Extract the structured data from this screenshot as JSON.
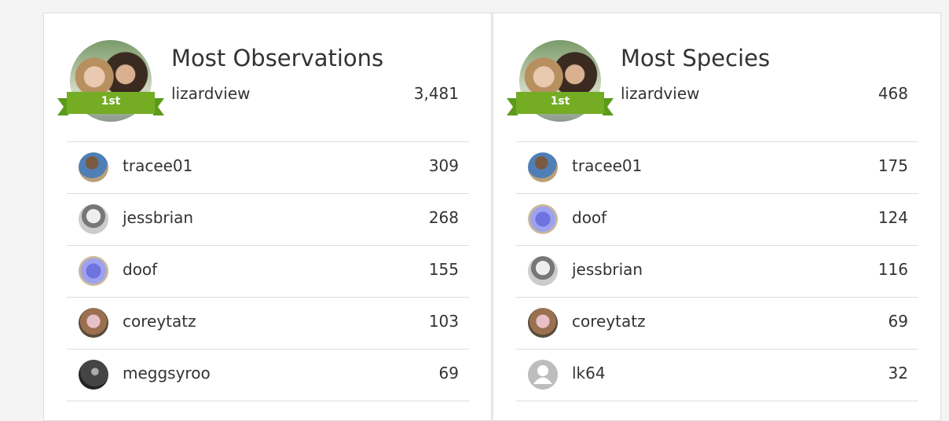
{
  "panels": [
    {
      "title": "Most Observations",
      "leader": {
        "name": "lizardview",
        "badge": "1st",
        "count": "3,481"
      },
      "rows": [
        {
          "name": "tracee01",
          "count": "309"
        },
        {
          "name": "jessbrian",
          "count": "268"
        },
        {
          "name": "doof",
          "count": "155"
        },
        {
          "name": "coreytatz",
          "count": "103"
        },
        {
          "name": "meggsyroo",
          "count": "69"
        }
      ]
    },
    {
      "title": "Most Species",
      "leader": {
        "name": "lizardview",
        "badge": "1st",
        "count": "468"
      },
      "rows": [
        {
          "name": "tracee01",
          "count": "175"
        },
        {
          "name": "doof",
          "count": "124"
        },
        {
          "name": "jessbrian",
          "count": "116"
        },
        {
          "name": "coreytatz",
          "count": "69"
        },
        {
          "name": "lk64",
          "count": "32"
        }
      ]
    }
  ]
}
